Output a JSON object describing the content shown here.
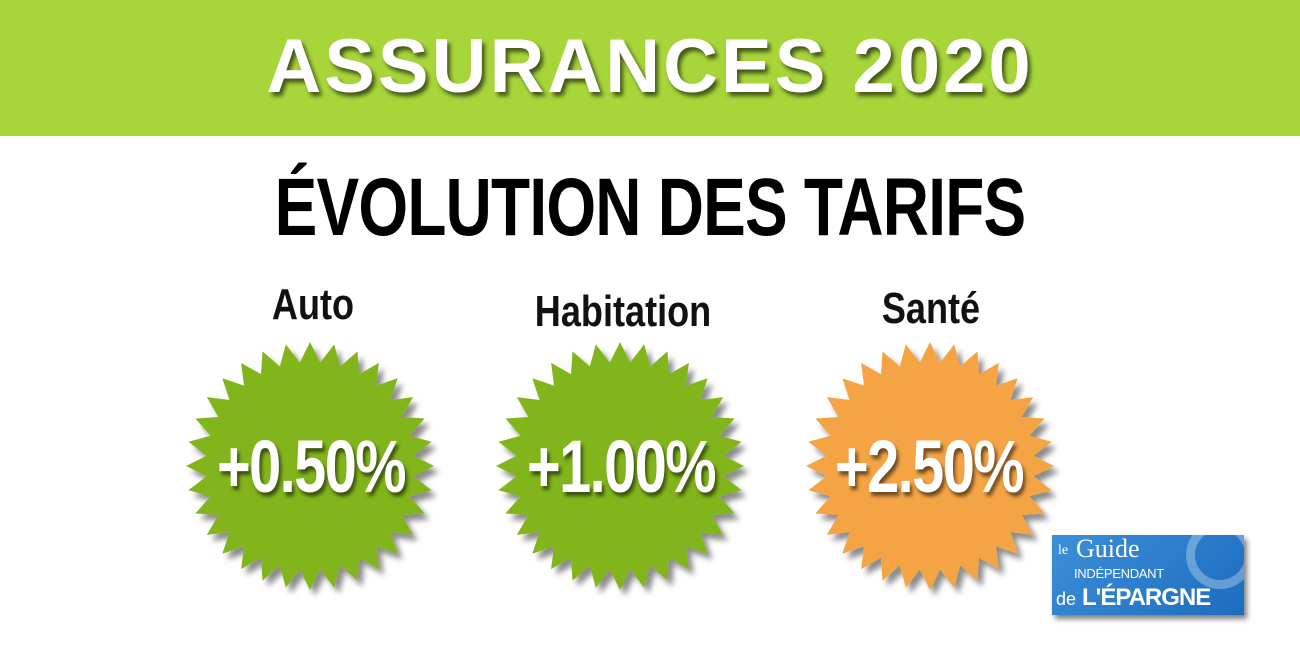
{
  "header": {
    "title": "ASSURANCES 2020",
    "background": "#a8d63a"
  },
  "subtitle": "ÉVOLUTION DES TARIFS",
  "items": [
    {
      "label": "Auto",
      "value": "+0.50%",
      "color": "#82b51f"
    },
    {
      "label": "Habitation",
      "value": "+1.00%",
      "color": "#82b51f"
    },
    {
      "label": "Santé",
      "value": "+2.50%",
      "color": "#f5a445"
    }
  ],
  "logo": {
    "line1": "le",
    "line2": "Guide",
    "line3": "INDÉPENDANT",
    "line4": "de",
    "line5": "L'ÉPARGNE"
  }
}
